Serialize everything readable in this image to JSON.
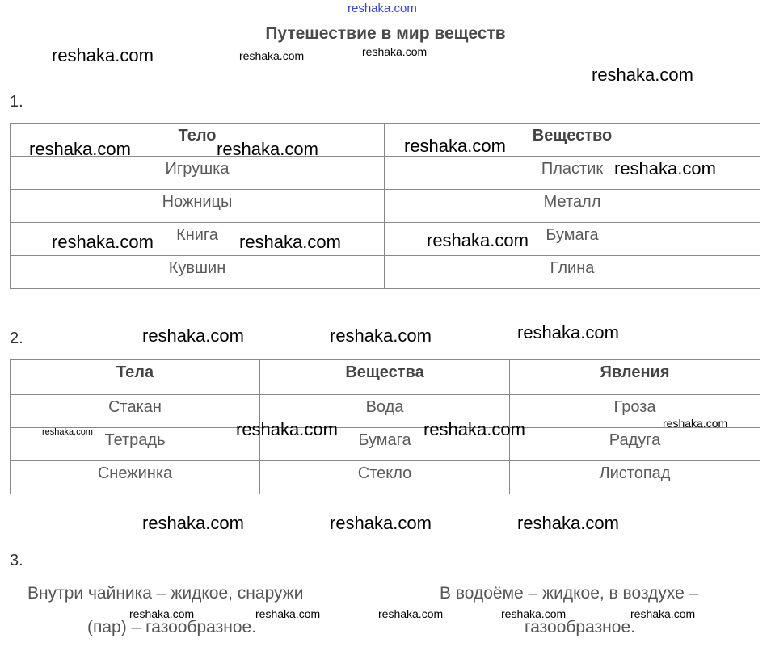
{
  "title": "Путешествие в мир веществ",
  "watermark": "reshaka.com",
  "task1": {
    "number": "1.",
    "headers": [
      "Тело",
      "Вещество"
    ],
    "rows": [
      [
        "Игрушка",
        "Пластик"
      ],
      [
        "Ножницы",
        "Металл"
      ],
      [
        "Книга",
        "Бумага"
      ],
      [
        "Кувшин",
        "Глина"
      ]
    ]
  },
  "task2": {
    "number": "2.",
    "headers": [
      "Тела",
      "Вещества",
      "Явления"
    ],
    "rows": [
      [
        "Стакан",
        "Вода",
        "Гроза"
      ],
      [
        "Тетрадь",
        "Бумага",
        "Радуга"
      ],
      [
        "Снежинка",
        "Стекло",
        "Листопад"
      ]
    ]
  },
  "task3": {
    "number": "3.",
    "left": [
      "Внутри чайника – жидкое, снаружи",
      "(пар) – газообразное."
    ],
    "right": [
      "В водоёме – жидкое, в воздухе –",
      "газообразное."
    ]
  }
}
